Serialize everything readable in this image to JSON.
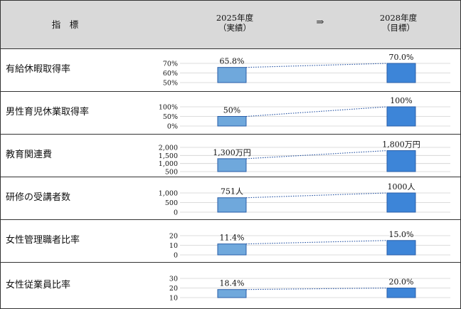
{
  "header": {
    "indicator": "指　標",
    "from_year": "2025年度",
    "from_note": "（実績）",
    "arrow": "⇒",
    "to_year": "2028年度",
    "to_note": "（目標）"
  },
  "colors": {
    "actual": "#6fa8dc",
    "target": "#3d85d8",
    "edge": "#2a5ea8",
    "connector": "#1f4ea0",
    "grid": "#d0d0d0"
  },
  "chart_data": [
    {
      "type": "bar",
      "title": "有給休暇取得率",
      "categories": [
        "2025年度",
        "2028年度"
      ],
      "values": [
        65.8,
        70.0
      ],
      "value_labels": [
        "65.8%",
        "70.0%"
      ],
      "yticks": [
        "70%",
        "60%",
        "50%"
      ],
      "ylim": [
        50,
        70
      ]
    },
    {
      "type": "bar",
      "title": "男性育児休業取得率",
      "categories": [
        "2025年度",
        "2028年度"
      ],
      "values": [
        50,
        100
      ],
      "value_labels": [
        "50%",
        "100%"
      ],
      "yticks": [
        "100%",
        "50%",
        "0%"
      ],
      "ylim": [
        0,
        100
      ]
    },
    {
      "type": "bar",
      "title": "教育関連費",
      "categories": [
        "2025年度",
        "2028年度"
      ],
      "values": [
        1300,
        1800
      ],
      "value_labels": [
        "1,300万円",
        "1,800万円"
      ],
      "yticks": [
        "2,000",
        "1,500",
        "1,000",
        "500"
      ],
      "ylim": [
        500,
        2000
      ]
    },
    {
      "type": "bar",
      "title": "研修の受講者数",
      "categories": [
        "2025年度",
        "2028年度"
      ],
      "values": [
        751,
        1000
      ],
      "value_labels": [
        "751人",
        "1000人"
      ],
      "yticks": [
        "1,000",
        "500",
        "0"
      ],
      "ylim": [
        0,
        1000
      ]
    },
    {
      "type": "bar",
      "title": "女性管理職者比率",
      "categories": [
        "2025年度",
        "2028年度"
      ],
      "values": [
        11.4,
        15.0
      ],
      "value_labels": [
        "11.4%",
        "15.0%"
      ],
      "yticks": [
        "20",
        "10",
        "0"
      ],
      "ylim": [
        0,
        20
      ]
    },
    {
      "type": "bar",
      "title": "女性従業員比率",
      "categories": [
        "2025年度",
        "2028年度"
      ],
      "values": [
        18.4,
        20.0
      ],
      "value_labels": [
        "18.4%",
        "20.0%"
      ],
      "yticks": [
        "30",
        "20",
        "10"
      ],
      "ylim": [
        10,
        30
      ]
    }
  ]
}
